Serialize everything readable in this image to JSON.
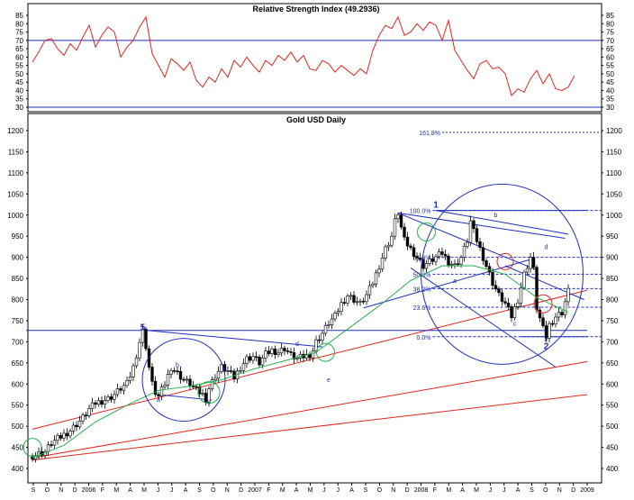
{
  "chart_data": [
    {
      "type": "line",
      "title": "Relative Strength Index (49.2936)",
      "ylim": [
        30,
        90
      ],
      "yticks": [
        30,
        35,
        40,
        45,
        50,
        55,
        60,
        65,
        70,
        75,
        80,
        85
      ],
      "reference_lines": [
        70,
        30
      ],
      "series": [
        {
          "color": "#e0261e",
          "points": [
            [
              0,
              57
            ],
            [
              2,
              63
            ],
            [
              4,
              70
            ],
            [
              6,
              71
            ],
            [
              8,
              65
            ],
            [
              10,
              61
            ],
            [
              12,
              68
            ],
            [
              14,
              64
            ],
            [
              16,
              72
            ],
            [
              18,
              79
            ],
            [
              20,
              66
            ],
            [
              22,
              73
            ],
            [
              24,
              78
            ],
            [
              26,
              75
            ],
            [
              28,
              60
            ],
            [
              30,
              66
            ],
            [
              32,
              70
            ],
            [
              34,
              78
            ],
            [
              36,
              84
            ],
            [
              38,
              62
            ],
            [
              40,
              55
            ],
            [
              42,
              48
            ],
            [
              44,
              59
            ],
            [
              46,
              56
            ],
            [
              48,
              52
            ],
            [
              50,
              57
            ],
            [
              52,
              46
            ],
            [
              54,
              42
            ],
            [
              56,
              48
            ],
            [
              58,
              45
            ],
            [
              60,
              53
            ],
            [
              62,
              48
            ],
            [
              64,
              58
            ],
            [
              66,
              54
            ],
            [
              68,
              60
            ],
            [
              70,
              55
            ],
            [
              72,
              51
            ],
            [
              74,
              58
            ],
            [
              76,
              55
            ],
            [
              78,
              61
            ],
            [
              80,
              58
            ],
            [
              82,
              63
            ],
            [
              84,
              57
            ],
            [
              86,
              61
            ],
            [
              88,
              53
            ],
            [
              90,
              52
            ],
            [
              92,
              58
            ],
            [
              94,
              56
            ],
            [
              96,
              51
            ],
            [
              98,
              55
            ],
            [
              100,
              52
            ],
            [
              102,
              49
            ],
            [
              104,
              53
            ],
            [
              106,
              50
            ],
            [
              108,
              64
            ],
            [
              110,
              73
            ],
            [
              112,
              79
            ],
            [
              114,
              77
            ],
            [
              116,
              84
            ],
            [
              118,
              73
            ],
            [
              120,
              75
            ],
            [
              122,
              80
            ],
            [
              124,
              76
            ],
            [
              126,
              81
            ],
            [
              128,
              79
            ],
            [
              130,
              70
            ],
            [
              132,
              82
            ],
            [
              134,
              64
            ],
            [
              136,
              58
            ],
            [
              138,
              52
            ],
            [
              140,
              47
            ],
            [
              142,
              56
            ],
            [
              144,
              58
            ],
            [
              146,
              53
            ],
            [
              148,
              54
            ],
            [
              150,
              50
            ],
            [
              152,
              37
            ],
            [
              154,
              41
            ],
            [
              156,
              39
            ],
            [
              158,
              47
            ],
            [
              160,
              52
            ],
            [
              162,
              44
            ],
            [
              164,
              50
            ],
            [
              166,
              41
            ],
            [
              168,
              40
            ],
            [
              170,
              42
            ],
            [
              172,
              49
            ]
          ]
        }
      ]
    },
    {
      "type": "candlestick",
      "title": "Gold USD Daily",
      "ylim": [
        380,
        1225
      ],
      "yticks": [
        400,
        450,
        500,
        550,
        600,
        650,
        700,
        750,
        800,
        850,
        900,
        950,
        1000,
        1050,
        1100,
        1150,
        1200
      ],
      "x_tick_labels": [
        "S",
        "O",
        "N",
        "D",
        "2006",
        "F",
        "M",
        "A",
        "M",
        "J",
        "J",
        "A",
        "S",
        "O",
        "N",
        "D",
        "2007",
        "F",
        "M",
        "A",
        "M",
        "J",
        "J",
        "A",
        "S",
        "O",
        "N",
        "D",
        "2008",
        "F",
        "M",
        "A",
        "M",
        "J",
        "J",
        "A",
        "S",
        "O",
        "N",
        "D",
        "2009"
      ],
      "price_path": [
        [
          0,
          430
        ],
        [
          2,
          435
        ],
        [
          4,
          440
        ],
        [
          6,
          460
        ],
        [
          8,
          470
        ],
        [
          10,
          480
        ],
        [
          12,
          490
        ],
        [
          14,
          505
        ],
        [
          16,
          520
        ],
        [
          18,
          540
        ],
        [
          20,
          555
        ],
        [
          22,
          560
        ],
        [
          24,
          565
        ],
        [
          26,
          575
        ],
        [
          28,
          590
        ],
        [
          30,
          600
        ],
        [
          32,
          640
        ],
        [
          34,
          700
        ],
        [
          35,
          725
        ],
        [
          36,
          690
        ],
        [
          37,
          640
        ],
        [
          38,
          600
        ],
        [
          39,
          580
        ],
        [
          40,
          570
        ],
        [
          42,
          600
        ],
        [
          44,
          640
        ],
        [
          46,
          625
        ],
        [
          48,
          610
        ],
        [
          50,
          600
        ],
        [
          52,
          585
        ],
        [
          54,
          575
        ],
        [
          55,
          565
        ],
        [
          56,
          590
        ],
        [
          58,
          620
        ],
        [
          60,
          640
        ],
        [
          62,
          630
        ],
        [
          64,
          615
        ],
        [
          66,
          640
        ],
        [
          68,
          660
        ],
        [
          70,
          665
        ],
        [
          72,
          650
        ],
        [
          74,
          670
        ],
        [
          76,
          680
        ],
        [
          78,
          675
        ],
        [
          80,
          685
        ],
        [
          82,
          668
        ],
        [
          84,
          660
        ],
        [
          86,
          665
        ],
        [
          88,
          670
        ],
        [
          89,
          680
        ],
        [
          90,
          700
        ],
        [
          92,
          720
        ],
        [
          94,
          745
        ],
        [
          96,
          760
        ],
        [
          98,
          790
        ],
        [
          100,
          810
        ],
        [
          102,
          800
        ],
        [
          104,
          790
        ],
        [
          106,
          810
        ],
        [
          108,
          840
        ],
        [
          110,
          880
        ],
        [
          112,
          920
        ],
        [
          114,
          950
        ],
        [
          115,
          985
        ],
        [
          116,
          1005
        ],
        [
          117,
          970
        ],
        [
          118,
          940
        ],
        [
          120,
          920
        ],
        [
          122,
          900
        ],
        [
          124,
          880
        ],
        [
          126,
          890
        ],
        [
          128,
          900
        ],
        [
          130,
          910
        ],
        [
          132,
          890
        ],
        [
          134,
          880
        ],
        [
          136,
          900
        ],
        [
          138,
          940
        ],
        [
          139,
          985
        ],
        [
          140,
          960
        ],
        [
          142,
          920
        ],
        [
          144,
          880
        ],
        [
          146,
          840
        ],
        [
          148,
          810
        ],
        [
          150,
          790
        ],
        [
          152,
          760
        ],
        [
          154,
          800
        ],
        [
          156,
          860
        ],
        [
          158,
          900
        ],
        [
          159,
          870
        ],
        [
          160,
          780
        ],
        [
          162,
          730
        ],
        [
          163,
          712
        ],
        [
          164,
          740
        ],
        [
          166,
          760
        ],
        [
          168,
          770
        ],
        [
          170,
          820
        ]
      ],
      "moving_average": [
        [
          0,
          425
        ],
        [
          10,
          455
        ],
        [
          20,
          510
        ],
        [
          30,
          550
        ],
        [
          40,
          585
        ],
        [
          50,
          595
        ],
        [
          60,
          610
        ],
        [
          70,
          635
        ],
        [
          80,
          655
        ],
        [
          90,
          675
        ],
        [
          100,
          730
        ],
        [
          110,
          785
        ],
        [
          120,
          845
        ],
        [
          130,
          880
        ],
        [
          140,
          880
        ],
        [
          150,
          860
        ],
        [
          160,
          805
        ],
        [
          170,
          770
        ]
      ],
      "fibonacci_levels": [
        {
          "label": "161.8%",
          "value": 1196
        },
        {
          "label": "100.0%",
          "value": 1011
        },
        {
          "label": "61.8%",
          "value": 900
        },
        {
          "label": "50.0%",
          "value": 860
        },
        {
          "label": "38.2%",
          "value": 826
        },
        {
          "label": "23.6%",
          "value": 782
        },
        {
          "label": "0.0%",
          "value": 712
        }
      ],
      "wave_labels": [
        {
          "text": "5",
          "x": 35,
          "y": 728
        },
        {
          "text": "a",
          "x": 40,
          "y": 558
        },
        {
          "text": "b",
          "x": 46,
          "y": 640
        },
        {
          "text": "c",
          "x": 56,
          "y": 553
        },
        {
          "text": "d",
          "x": 84,
          "y": 690
        },
        {
          "text": "e",
          "x": 94,
          "y": 605
        },
        {
          "text": "1",
          "x": 128,
          "y": 1018
        },
        {
          "text": "a",
          "x": 134,
          "y": 840
        },
        {
          "text": "b",
          "x": 147,
          "y": 995
        },
        {
          "text": "c",
          "x": 153,
          "y": 738
        },
        {
          "text": "d",
          "x": 163,
          "y": 920
        },
        {
          "text": "e",
          "x": 163,
          "y": 700
        },
        {
          "text": "2",
          "x": 163,
          "y": 683
        }
      ],
      "colors": {
        "candle_up": "#ffffff",
        "candle_down": "#000000",
        "moving_average": "#22b14c",
        "trendline_red": "#e0261e",
        "pattern_blue": "#1f2fbf",
        "fib_blue": "#1f2fbf",
        "rsi_red": "#e0261e"
      }
    }
  ]
}
